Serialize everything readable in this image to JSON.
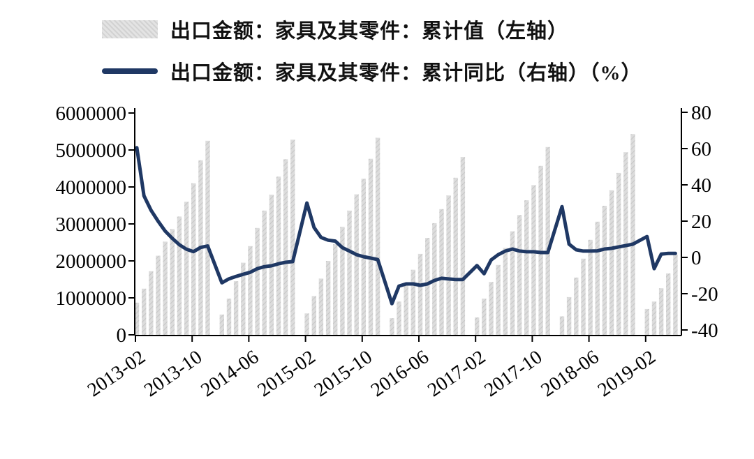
{
  "figure": {
    "background": "#ffffff",
    "legend": {
      "items": [
        {
          "id": "cumulative-value",
          "label": "出口金额：家具及其零件：累计值（左轴）",
          "swatch": "hatched-bar",
          "color": "#d9d9d9"
        },
        {
          "id": "cumulative-yoy",
          "label": "出口金额：家具及其零件：累计同比（右轴）（%）",
          "swatch": "line",
          "color": "#1f3864"
        }
      ]
    }
  },
  "chart_data": {
    "type": "bar",
    "subtype": "bar+line dual-axis combo",
    "title": "",
    "xlabel": "",
    "ylabel_left": "",
    "ylabel_right": "(%)",
    "grid": false,
    "legend_position": "top-left",
    "x_months": [
      "2013-02",
      "2013-03",
      "2013-04",
      "2013-05",
      "2013-06",
      "2013-07",
      "2013-08",
      "2013-09",
      "2013-10",
      "2013-11",
      "2013-12",
      "2014-01",
      "2014-02",
      "2014-03",
      "2014-04",
      "2014-05",
      "2014-06",
      "2014-07",
      "2014-08",
      "2014-09",
      "2014-10",
      "2014-11",
      "2014-12",
      "2015-01",
      "2015-02",
      "2015-03",
      "2015-04",
      "2015-05",
      "2015-06",
      "2015-07",
      "2015-08",
      "2015-09",
      "2015-10",
      "2015-11",
      "2015-12",
      "2016-01",
      "2016-02",
      "2016-03",
      "2016-04",
      "2016-05",
      "2016-06",
      "2016-07",
      "2016-08",
      "2016-09",
      "2016-10",
      "2016-11",
      "2016-12",
      "2017-01",
      "2017-02",
      "2017-03",
      "2017-04",
      "2017-05",
      "2017-06",
      "2017-07",
      "2017-08",
      "2017-09",
      "2017-10",
      "2017-11",
      "2017-12",
      "2018-01",
      "2018-02",
      "2018-03",
      "2018-04",
      "2018-05",
      "2018-06",
      "2018-07",
      "2018-08",
      "2018-09",
      "2018-10",
      "2018-11",
      "2018-12",
      "2019-01",
      "2019-02",
      "2019-03",
      "2019-04",
      "2019-05",
      "2019-06"
    ],
    "series": [
      {
        "name": "出口金额：家具及其零件：累计值（左轴）",
        "type": "bar",
        "axis": "left",
        "color": "#d9d9d9",
        "values": [
          870000,
          1250000,
          1720000,
          2140000,
          2520000,
          2860000,
          3200000,
          3600000,
          4100000,
          4720000,
          5250000,
          null,
          550000,
          980000,
          1450000,
          1950000,
          2400000,
          2890000,
          3360000,
          3790000,
          4280000,
          4750000,
          5280000,
          null,
          580000,
          1050000,
          1520000,
          2000000,
          2450000,
          2920000,
          3360000,
          3800000,
          4220000,
          4760000,
          5330000,
          null,
          450000,
          900000,
          1330000,
          1760000,
          2190000,
          2620000,
          3020000,
          3400000,
          3770000,
          4250000,
          4810000,
          null,
          470000,
          980000,
          1430000,
          1890000,
          2350000,
          2800000,
          3240000,
          3640000,
          4050000,
          4570000,
          5080000,
          null,
          500000,
          1020000,
          1550000,
          2060000,
          2570000,
          3060000,
          3490000,
          3910000,
          4380000,
          4940000,
          5430000,
          null,
          700000,
          900000,
          1260000,
          1660000,
          2170000
        ]
      },
      {
        "name": "出口金额：家具及其零件：累计同比（右轴）（%）",
        "type": "line",
        "axis": "right",
        "color": "#1f3864",
        "values": [
          60.5,
          34,
          26,
          20,
          14.5,
          10.5,
          7,
          4.5,
          3.2,
          5.5,
          6.3,
          null,
          -14,
          -11.8,
          -10.5,
          -9.3,
          -8.2,
          -6.2,
          -5.1,
          -4.6,
          -3.5,
          -2.7,
          -2.3,
          null,
          30,
          16.5,
          11,
          9.5,
          9,
          5.4,
          3.5,
          1.5,
          0.4,
          -0.4,
          -1.2,
          null,
          -25.5,
          -15.8,
          -14.6,
          -14.6,
          -15.4,
          -14.6,
          -12.7,
          -11.5,
          -11.9,
          -12.2,
          -12.2,
          null,
          -4.5,
          -9,
          -1.4,
          1.5,
          3.5,
          4.6,
          3.5,
          3.1,
          3.1,
          2.7,
          2.7,
          null,
          28,
          7.3,
          4.2,
          3.5,
          3.5,
          3.6,
          4.6,
          5,
          5.8,
          6.5,
          7.3,
          null,
          11.5,
          -6.2,
          1.8,
          2.2,
          2.2
        ]
      }
    ],
    "left_axis": {
      "min": 0,
      "max": 6000000,
      "tick_labels": [
        "0",
        "1000000",
        "2000000",
        "3000000",
        "4000000",
        "5000000",
        "6000000"
      ]
    },
    "right_axis": {
      "min": -40,
      "max": 80,
      "tick_labels": [
        "-40",
        "-20",
        "0",
        "20",
        "40",
        "60",
        "80"
      ]
    },
    "x_axis": {
      "tick_labels": [
        "2013-02",
        "2013-10",
        "2014-06",
        "2015-02",
        "2015-10",
        "2016-06",
        "2017-02",
        "2017-10",
        "2018-06",
        "2019-02"
      ],
      "tick_month_indices": [
        0,
        8,
        16,
        24,
        32,
        40,
        48,
        56,
        64,
        72
      ],
      "label_rotation_deg": -35
    }
  }
}
